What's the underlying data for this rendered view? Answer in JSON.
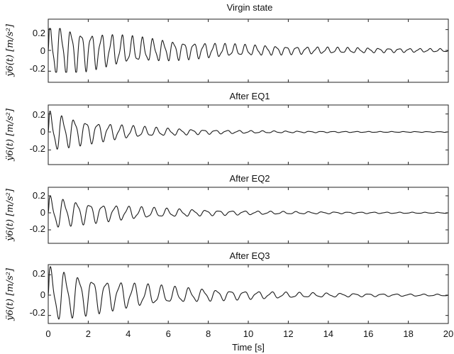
{
  "chart_data": [
    {
      "type": "line",
      "title": "Virgin state",
      "ylabel": "ÿ6(t) [m/s²]",
      "xlim": [
        0,
        20
      ],
      "ylim": [
        -0.3,
        0.3
      ],
      "yticks": [
        0.2,
        0,
        -0.2
      ],
      "ytick_labels": [
        "0.2",
        "0",
        "-0.2"
      ],
      "series": [
        {
          "x": [
            0,
            0.25,
            0.5,
            1,
            2,
            3,
            4,
            5,
            6,
            8,
            10,
            12,
            15,
            18,
            20
          ],
          "y": [
            0,
            0.21,
            -0.2,
            0.18,
            0.13,
            0.1,
            0.08,
            0.065,
            0.05,
            0.035,
            0.025,
            0.018,
            0.012,
            0.008,
            0.006
          ]
        }
      ],
      "signal": {
        "amp0": 0.22,
        "decay": 0.17,
        "freq": 1.95,
        "floor": 0.006,
        "sat": 0.21
      }
    },
    {
      "type": "line",
      "title": "After EQ1",
      "ylabel": "ÿ6(t) [m/s²]",
      "xlim": [
        0,
        20
      ],
      "ylim": [
        -0.3,
        0.3
      ],
      "yticks": [
        0.2,
        0,
        -0.2
      ],
      "ytick_labels": [
        "0.2",
        "0",
        "-0.2"
      ],
      "series": [
        {
          "x": [
            0,
            0.3,
            0.6,
            1,
            2,
            3,
            4,
            6,
            8,
            10,
            14,
            20
          ],
          "y": [
            0,
            0.16,
            -0.22,
            0.12,
            0.08,
            0.05,
            0.035,
            0.02,
            0.012,
            0.008,
            0.004,
            0.003
          ]
        }
      ],
      "signal": {
        "amp0": 0.2,
        "decay": 0.3,
        "freq": 1.7,
        "floor": 0.003,
        "sat": 0.3
      }
    },
    {
      "type": "line",
      "title": "After EQ2",
      "ylabel": "ÿ6(t) [m/s²]",
      "xlim": [
        0,
        20
      ],
      "ylim": [
        -0.3,
        0.3
      ],
      "yticks": [
        0.2,
        0,
        -0.2
      ],
      "ytick_labels": [
        "0.2",
        "0",
        "-0.2"
      ],
      "series": [
        {
          "x": [
            0,
            0.4,
            0.8,
            1.5,
            2,
            3,
            4,
            6,
            8,
            10,
            14,
            20
          ],
          "y": [
            0,
            0.16,
            -0.15,
            0.1,
            0.07,
            0.05,
            0.04,
            0.025,
            0.015,
            0.01,
            0.006,
            0.004
          ]
        }
      ],
      "signal": {
        "amp0": 0.17,
        "decay": 0.24,
        "freq": 1.55,
        "floor": 0.004,
        "sat": 0.3
      }
    },
    {
      "type": "line",
      "title": "After EQ3",
      "ylabel": "ÿ6(t) [m/s²]",
      "xlabel": "Time [s]",
      "xlim": [
        0,
        20
      ],
      "ylim": [
        -0.3,
        0.3
      ],
      "yticks": [
        0.2,
        0,
        -0.2
      ],
      "ytick_labels": [
        "0.2",
        "0",
        "-0.2"
      ],
      "xticks": [
        0,
        2,
        4,
        6,
        8,
        10,
        12,
        14,
        16,
        18,
        20
      ],
      "xtick_labels": [
        "0",
        "2",
        "4",
        "6",
        "8",
        "10",
        "12",
        "14",
        "16",
        "18",
        "20"
      ],
      "series": [
        {
          "x": [
            0,
            0.2,
            0.5,
            1,
            2,
            3,
            4,
            6,
            8,
            10,
            14,
            20
          ],
          "y": [
            0,
            0.28,
            -0.2,
            0.17,
            0.12,
            0.08,
            0.06,
            0.035,
            0.02,
            0.012,
            0.006,
            0.003
          ]
        }
      ],
      "signal": {
        "amp0": 0.24,
        "decay": 0.2,
        "freq": 1.45,
        "floor": 0.003,
        "sat": 0.3
      }
    }
  ]
}
